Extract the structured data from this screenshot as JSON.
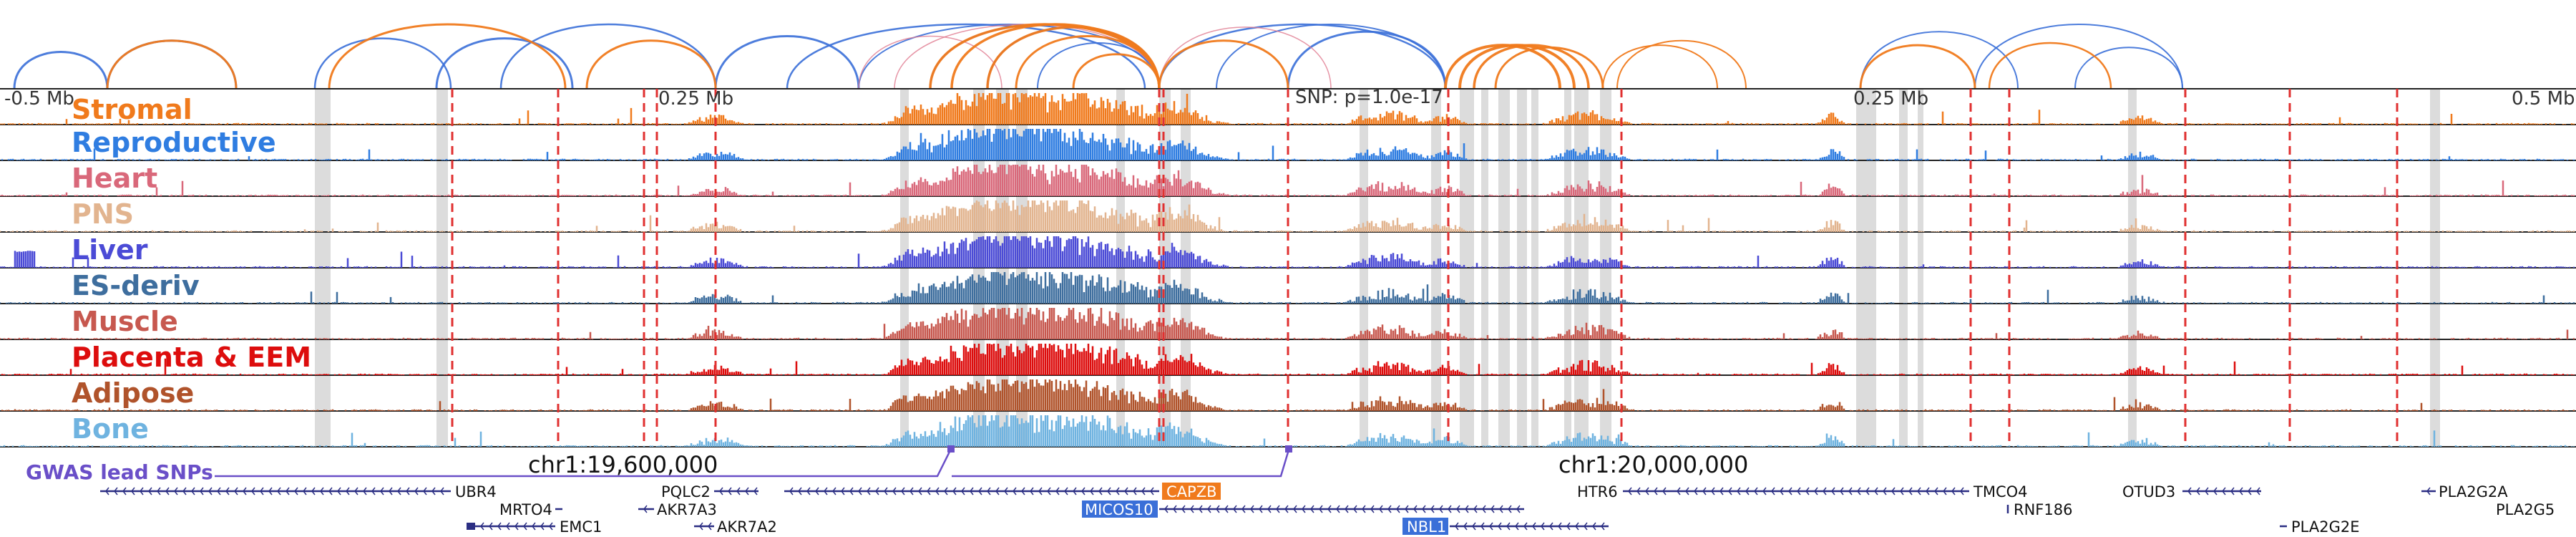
{
  "browser": {
    "axis": {
      "left": "-0.5 Mb",
      "mid_left": "0.25 Mb",
      "snp": "SNP: p=1.0e-17",
      "mid_right": "0.25 Mb",
      "right": "0.5 Mb"
    },
    "coordinates": [
      "chr1:19,600,000",
      "chr1:20,000,000"
    ],
    "gwas_label": "GWAS lead SNPs",
    "colors": {
      "loop_orange": "#f07a1c",
      "loop_blue": "#3a6fd8",
      "loop_pink": "#e07a90",
      "highlight": "#dcdcdc",
      "snp_marker": "#e03030",
      "gwas": "#6a4fc8",
      "gene": "#2b2e83"
    },
    "tracks": [
      {
        "name": "Stromal",
        "color": "#f07a1c"
      },
      {
        "name": "Reproductive",
        "color": "#2f7de1"
      },
      {
        "name": "Heart",
        "color": "#d9687a"
      },
      {
        "name": "PNS",
        "color": "#e2b48f"
      },
      {
        "name": "Liver",
        "color": "#4b4bd6"
      },
      {
        "name": "ES-deriv",
        "color": "#3e6e9e"
      },
      {
        "name": "Muscle",
        "color": "#c7584f"
      },
      {
        "name": "Placenta & EEM",
        "color": "#dd0d0d"
      },
      {
        "name": "Adipose",
        "color": "#b0532b"
      },
      {
        "name": "Bone",
        "color": "#6fb3e0"
      }
    ],
    "genes": [
      {
        "name": "UBR4",
        "highlighted": false
      },
      {
        "name": "MRTO4",
        "highlighted": false
      },
      {
        "name": "EMC1",
        "highlighted": false
      },
      {
        "name": "PQLC2",
        "highlighted": false
      },
      {
        "name": "AKR7A3",
        "highlighted": false
      },
      {
        "name": "AKR7A2",
        "highlighted": false
      },
      {
        "name": "CAPZB",
        "highlighted": true,
        "highlight_color": "#f07a1c"
      },
      {
        "name": "MICOS10",
        "highlighted": true,
        "highlight_color": "#3a6fd8"
      },
      {
        "name": "NBL1",
        "highlighted": true,
        "highlight_color": "#3a6fd8"
      },
      {
        "name": "HTR6",
        "highlighted": false
      },
      {
        "name": "TMCO4",
        "highlighted": false
      },
      {
        "name": "RNF186",
        "highlighted": false
      },
      {
        "name": "OTUD3",
        "highlighted": false
      },
      {
        "name": "PLA2G2E",
        "highlighted": false
      },
      {
        "name": "PLA2G2A",
        "highlighted": false
      },
      {
        "name": "PLA2G5",
        "highlighted": false
      }
    ]
  }
}
